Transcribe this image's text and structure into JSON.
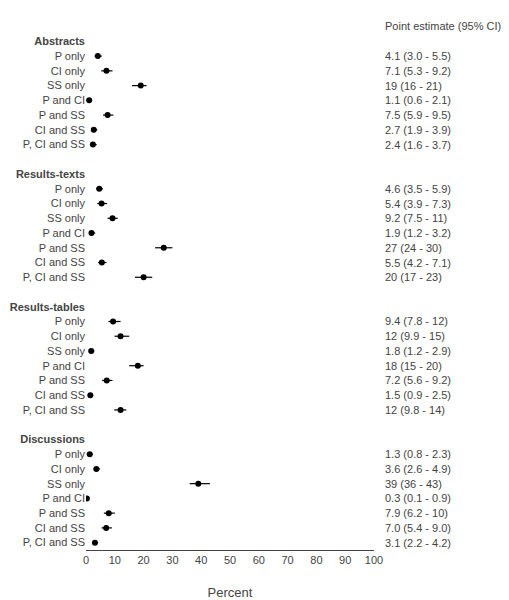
{
  "chart_data": {
    "type": "forest",
    "xlabel": "Percent",
    "annotations": [
      "Point estimate (95% CI)"
    ],
    "color": "black",
    "xlim": [
      0,
      100
    ],
    "xticks": [
      0,
      10,
      20,
      30,
      40,
      50,
      60,
      70,
      80,
      90,
      100
    ],
    "grid": false,
    "sections": [
      {
        "header": "Abstracts",
        "categories": [
          "P only",
          "CI only",
          "SS only",
          "P and CI",
          "P and SS",
          "CI and SS",
          "P, CI and SS"
        ],
        "values": [
          4.1,
          7.1,
          19.0,
          1.1,
          7.5,
          2.7,
          2.4
        ],
        "ci_lo": [
          3.0,
          5.3,
          16.0,
          0.6,
          5.9,
          1.9,
          1.6
        ],
        "ci_hi": [
          5.5,
          9.2,
          21.0,
          2.1,
          9.5,
          3.9,
          3.7
        ],
        "value_labels": [
          "4.1 (3.0 - 5.5)",
          "7.1 (5.3 - 9.2)",
          "19 (16 - 21)",
          "1.1 (0.6 - 2.1)",
          "7.5 (5.9 - 9.5)",
          "2.7 (1.9 - 3.9)",
          "2.4 (1.6 - 3.7)"
        ]
      },
      {
        "header": "Results-texts",
        "categories": [
          "P only",
          "CI only",
          "SS only",
          "P and CI",
          "P and SS",
          "CI and SS",
          "P, CI and SS"
        ],
        "values": [
          4.6,
          5.4,
          9.2,
          1.9,
          27.0,
          5.5,
          20.0
        ],
        "ci_lo": [
          3.5,
          3.9,
          7.5,
          1.2,
          24.0,
          4.2,
          17.0
        ],
        "ci_hi": [
          5.9,
          7.3,
          11.0,
          3.2,
          30.0,
          7.1,
          23.0
        ],
        "value_labels": [
          "4.6 (3.5 - 5.9)",
          "5.4 (3.9 - 7.3)",
          "9.2 (7.5 - 11)",
          "1.9 (1.2 - 3.2)",
          "27 (24 - 30)",
          "5.5 (4.2 - 7.1)",
          "20 (17 - 23)"
        ]
      },
      {
        "header": "Results-tables",
        "categories": [
          "P only",
          "CI only",
          "SS only",
          "P and CI",
          "P and SS",
          "CI and SS",
          "P, CI and SS"
        ],
        "values": [
          9.4,
          12.0,
          1.8,
          18.0,
          7.2,
          1.5,
          12.0
        ],
        "ci_lo": [
          7.8,
          9.9,
          1.2,
          15.0,
          5.6,
          0.9,
          9.8
        ],
        "ci_hi": [
          12.0,
          15.0,
          2.9,
          20.0,
          9.2,
          2.5,
          14.0
        ],
        "value_labels": [
          "9.4 (7.8 - 12)",
          "12 (9.9 - 15)",
          "1.8 (1.2 - 2.9)",
          "18 (15 - 20)",
          "7.2 (5.6 - 9.2)",
          "1.5 (0.9 - 2.5)",
          "12 (9.8 - 14)"
        ]
      },
      {
        "header": "Discussions",
        "categories": [
          "P only",
          "CI only",
          "SS only",
          "P and CI",
          "P and SS",
          "CI and SS",
          "P, CI and SS"
        ],
        "values": [
          1.3,
          3.6,
          39.0,
          0.3,
          7.9,
          7.0,
          3.1
        ],
        "ci_lo": [
          0.8,
          2.6,
          36.0,
          0.1,
          6.2,
          5.4,
          2.2
        ],
        "ci_hi": [
          2.3,
          4.9,
          43.0,
          0.9,
          10.0,
          9.0,
          4.2
        ],
        "value_labels": [
          "1.3 (0.8 - 2.3)",
          "3.6 (2.6 - 4.9)",
          "39 (36 - 43)",
          "0.3 (0.1 - 0.9)",
          "7.9 (6.2 - 10)",
          "7.0 (5.4 - 9.0)",
          "3.1 (2.2 - 4.2)"
        ]
      }
    ]
  }
}
